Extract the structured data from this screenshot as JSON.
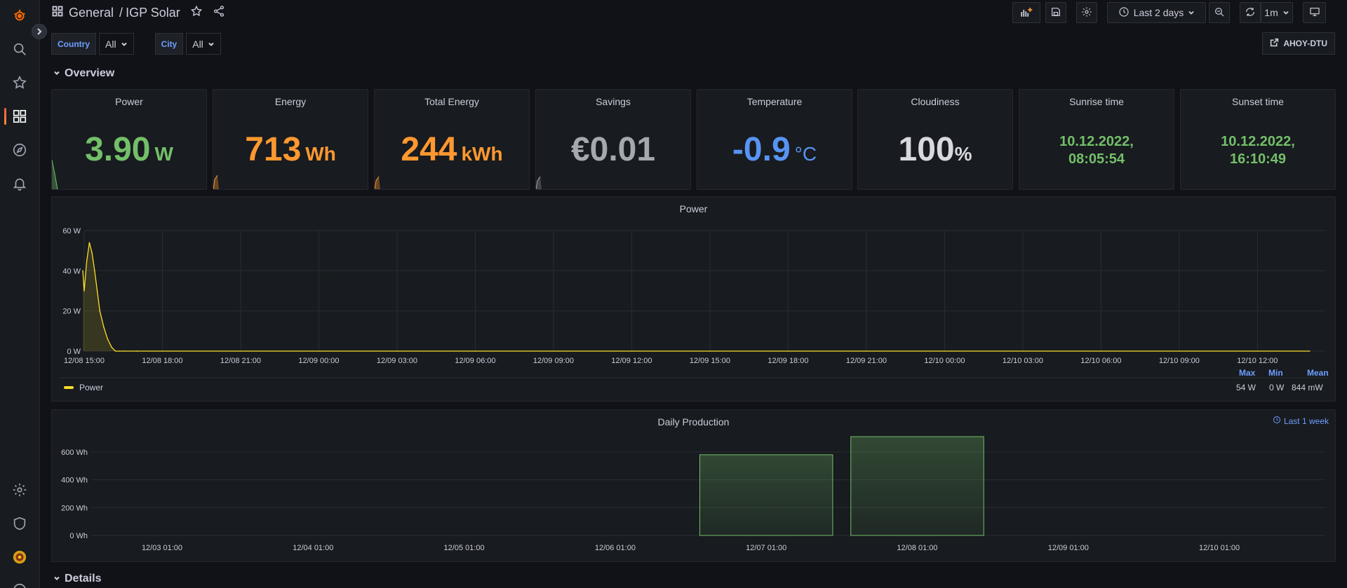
{
  "breadcrumb": {
    "folder": "General",
    "separator": "/",
    "dashboard": "IGP Solar"
  },
  "toolbar": {
    "time_range": "Last 2 days",
    "refresh": "1m"
  },
  "variables": [
    {
      "label": "Country",
      "value": "All"
    },
    {
      "label": "City",
      "value": "All"
    }
  ],
  "link_button": "AHOY-DTU",
  "rows": {
    "overview": "Overview",
    "details": "Details"
  },
  "stats": [
    {
      "title": "Power",
      "value": "3.90",
      "unit": "W",
      "color": "#73bf69"
    },
    {
      "title": "Energy",
      "value": "713",
      "unit": "Wh",
      "color": "#ff9830"
    },
    {
      "title": "Total Energy",
      "value": "244",
      "unit": "kWh",
      "color": "#ff9830"
    },
    {
      "title": "Savings",
      "value": "€0.01",
      "unit": "",
      "color": "#a6a8b0"
    },
    {
      "title": "Temperature",
      "value": "-0.9",
      "unit": "°C",
      "color": "#5794f2"
    },
    {
      "title": "Cloudiness",
      "value": "100",
      "unit": "%",
      "color": "#d8d9de"
    },
    {
      "title": "Sunrise time",
      "line1": "10.12.2022,",
      "line2": "08:05:54",
      "color": "#73bf69"
    },
    {
      "title": "Sunset time",
      "line1": "10.12.2022,",
      "line2": "16:10:49",
      "color": "#73bf69"
    }
  ],
  "power_chart": {
    "title": "Power",
    "legend": {
      "series": "Power",
      "headers": {
        "max": "Max",
        "min": "Min",
        "mean": "Mean"
      },
      "values": {
        "max": "54 W",
        "min": "0 W",
        "mean": "844 mW"
      }
    }
  },
  "daily_chart": {
    "title": "Daily Production",
    "time_override": "Last 1 week"
  },
  "chart_data": [
    {
      "type": "line",
      "title": "Power",
      "ylim": [
        0,
        60
      ],
      "y_ticks": [
        "0 W",
        "20 W",
        "40 W",
        "60 W"
      ],
      "x_ticks": [
        "12/08 15:00",
        "12/08 18:00",
        "12/08 21:00",
        "12/09 00:00",
        "12/09 03:00",
        "12/09 06:00",
        "12/09 09:00",
        "12/09 12:00",
        "12/09 15:00",
        "12/09 18:00",
        "12/09 21:00",
        "12/10 00:00",
        "12/10 03:00",
        "12/10 06:00",
        "12/10 09:00",
        "12/10 12:00"
      ],
      "x_hours": [
        -0.2,
        0.0,
        0.1,
        0.2,
        0.3,
        0.4,
        0.5,
        0.6,
        0.75,
        0.9,
        1.05,
        1.2,
        1.35,
        1.5,
        2.0,
        47.0
      ],
      "y_values": [
        40,
        30,
        45,
        54,
        49,
        40,
        30,
        20,
        12,
        6,
        2,
        0,
        0,
        0,
        0,
        0
      ],
      "series": [
        {
          "name": "Power"
        }
      ],
      "grid": true
    },
    {
      "type": "bar",
      "title": "Daily Production",
      "ylim": [
        0,
        700
      ],
      "y_ticks": [
        "0 Wh",
        "200 Wh",
        "400 Wh",
        "600 Wh"
      ],
      "categories": [
        "12/03 01:00",
        "12/04 01:00",
        "12/05 01:00",
        "12/06 01:00",
        "12/07 01:00",
        "12/08 01:00",
        "12/09 01:00",
        "12/10 01:00"
      ],
      "values": [
        0,
        0,
        0,
        0,
        580,
        710,
        0,
        0
      ],
      "grid": true
    }
  ]
}
